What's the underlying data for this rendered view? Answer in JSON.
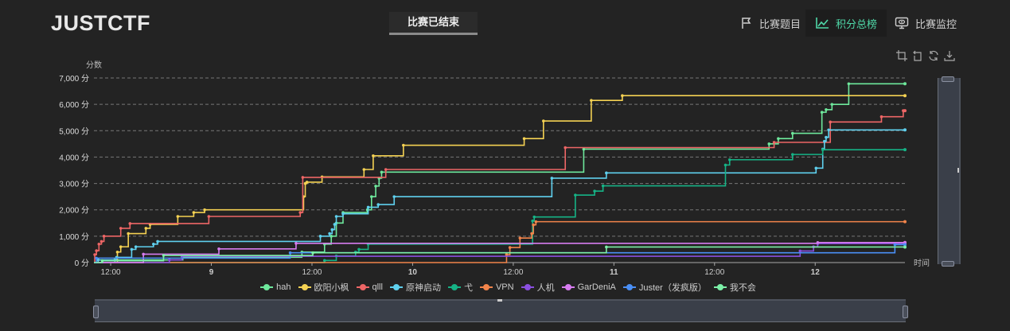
{
  "header": {
    "logo": "JUSTCTF",
    "status": "比赛已结束",
    "nav": [
      {
        "label": "比赛题目",
        "icon": "flag-icon",
        "active": false
      },
      {
        "label": "积分总榜",
        "icon": "line-chart-icon",
        "active": true
      },
      {
        "label": "比赛监控",
        "icon": "monitor-icon",
        "active": false
      }
    ]
  },
  "toolbox": [
    "zoom-icon",
    "zoom-reset-icon",
    "restore-icon",
    "download-icon"
  ],
  "chart_data": {
    "type": "line",
    "step": true,
    "ylabel": "分数",
    "xlabel": "时间",
    "ylim": [
      0,
      7000
    ],
    "yticks": [
      0,
      1000,
      2000,
      3000,
      4000,
      5000,
      6000,
      7000
    ],
    "ytick_labels": [
      "0 分",
      "1,000 分",
      "2,000 分",
      "3,000 分",
      "4,000 分",
      "5,000 分",
      "6,000 分",
      "7,000 分"
    ],
    "x_unit": "hours since day 8 00:00",
    "xlim": [
      10,
      106.7
    ],
    "xticks": [
      12,
      24,
      36,
      48,
      60,
      72,
      84,
      96
    ],
    "xtick_labels": [
      "12:00",
      "9",
      "12:00",
      "10",
      "12:00",
      "11",
      "12:00",
      "12"
    ],
    "grid": true,
    "legend_position": "bottom",
    "series": [
      {
        "name": "hah",
        "color": "#6ee89c",
        "points": [
          [
            10,
            0
          ],
          [
            12.5,
            100
          ],
          [
            20.6,
            200
          ],
          [
            34.8,
            400
          ],
          [
            37.5,
            700
          ],
          [
            38.3,
            1000
          ],
          [
            38.9,
            1500
          ],
          [
            39.7,
            1900
          ],
          [
            42.6,
            2000
          ],
          [
            43.1,
            2500
          ],
          [
            43.6,
            2900
          ],
          [
            44.0,
            3200
          ],
          [
            44.3,
            3430
          ],
          [
            68.4,
            4300
          ],
          [
            90.5,
            4500
          ],
          [
            91.6,
            4700
          ],
          [
            93.3,
            4900
          ],
          [
            96.8,
            5700
          ],
          [
            97.3,
            5800
          ],
          [
            98.0,
            6000
          ],
          [
            100.0,
            6780
          ]
        ]
      },
      {
        "name": "欧阳小枫",
        "color": "#f5d253",
        "points": [
          [
            10,
            0
          ],
          [
            12.8,
            400
          ],
          [
            13.2,
            600
          ],
          [
            14.1,
            1100
          ],
          [
            16.2,
            1300
          ],
          [
            16.7,
            1450
          ],
          [
            20.0,
            1750
          ],
          [
            21.9,
            1900
          ],
          [
            23.2,
            2000
          ],
          [
            35.0,
            2500
          ],
          [
            35.2,
            3000
          ],
          [
            35.4,
            3050
          ],
          [
            37.2,
            3250
          ],
          [
            42.2,
            3530
          ],
          [
            43.3,
            4050
          ],
          [
            46.9,
            4450
          ],
          [
            61.3,
            4700
          ],
          [
            63.6,
            5370
          ],
          [
            69.3,
            6150
          ],
          [
            73.0,
            6330
          ]
        ]
      },
      {
        "name": "qlll",
        "color": "#ee6666",
        "points": [
          [
            10,
            0
          ],
          [
            10.1,
            300
          ],
          [
            10.3,
            450
          ],
          [
            10.6,
            700
          ],
          [
            10.9,
            800
          ],
          [
            11.2,
            1000
          ],
          [
            13.2,
            1300
          ],
          [
            14.3,
            1480
          ],
          [
            23.7,
            1750
          ],
          [
            34.6,
            1900
          ],
          [
            34.9,
            3230
          ],
          [
            44.8,
            3530
          ],
          [
            66.2,
            4360
          ],
          [
            91.1,
            4560
          ],
          [
            97.8,
            5330
          ],
          [
            103.9,
            5530
          ],
          [
            106.5,
            5760
          ]
        ]
      },
      {
        "name": "原神启动",
        "color": "#5fd0ee",
        "points": [
          [
            10,
            0
          ],
          [
            10.5,
            100
          ],
          [
            12.7,
            200
          ],
          [
            14.5,
            500
          ],
          [
            15.0,
            600
          ],
          [
            17.1,
            700
          ],
          [
            17.6,
            800
          ],
          [
            37.0,
            1000
          ],
          [
            38.1,
            1100
          ],
          [
            38.4,
            1250
          ],
          [
            38.7,
            1450
          ],
          [
            38.9,
            1750
          ],
          [
            39.7,
            1850
          ],
          [
            42.7,
            2100
          ],
          [
            43.9,
            2200
          ],
          [
            45.8,
            2500
          ],
          [
            64.6,
            3200
          ],
          [
            71.1,
            3400
          ],
          [
            96.1,
            3580
          ],
          [
            96.9,
            4300
          ],
          [
            97.1,
            4600
          ],
          [
            97.3,
            4750
          ],
          [
            97.6,
            5030
          ]
        ]
      },
      {
        "name": "弋",
        "color": "#16b386",
        "points": [
          [
            10,
            0
          ],
          [
            37.5,
            80
          ],
          [
            38.9,
            250
          ],
          [
            41.2,
            400
          ],
          [
            41.6,
            500
          ],
          [
            42.7,
            700
          ],
          [
            62.3,
            1580
          ],
          [
            62.5,
            1730
          ],
          [
            67.4,
            2560
          ],
          [
            69.7,
            2710
          ],
          [
            70.7,
            2910
          ],
          [
            85.3,
            3700
          ],
          [
            85.8,
            3900
          ],
          [
            93.3,
            4100
          ],
          [
            96.9,
            4280
          ]
        ]
      },
      {
        "name": "VPN",
        "color": "#f2844a",
        "points": [
          [
            10,
            0
          ],
          [
            59.2,
            300
          ],
          [
            59.6,
            570
          ],
          [
            60.8,
            930
          ],
          [
            62.2,
            1100
          ],
          [
            62.4,
            1430
          ],
          [
            62.7,
            1550
          ]
        ]
      },
      {
        "name": "人机",
        "color": "#8a4fe0",
        "points": [
          [
            10,
            0
          ],
          [
            19.0,
            100
          ],
          [
            20.5,
            240
          ],
          [
            94.2,
            440
          ],
          [
            95.8,
            600
          ],
          [
            96.3,
            720
          ]
        ]
      },
      {
        "name": "GarDeniA",
        "color": "#d77cf0",
        "points": [
          [
            10,
            0
          ],
          [
            15.9,
            320
          ],
          [
            24.9,
            520
          ],
          [
            34.1,
            730
          ],
          [
            96.3,
            760
          ]
        ]
      },
      {
        "name": "Juster（发疯版）",
        "color": "#4a8ff5",
        "points": [
          [
            10,
            0
          ],
          [
            10.3,
            170
          ],
          [
            33.4,
            370
          ],
          [
            105.5,
            680
          ]
        ]
      },
      {
        "name": "我不会",
        "color": "#7cf0a8",
        "points": [
          [
            10,
            0
          ],
          [
            11.0,
            70
          ],
          [
            18.3,
            270
          ],
          [
            36.1,
            370
          ],
          [
            71.1,
            590
          ]
        ]
      }
    ]
  }
}
